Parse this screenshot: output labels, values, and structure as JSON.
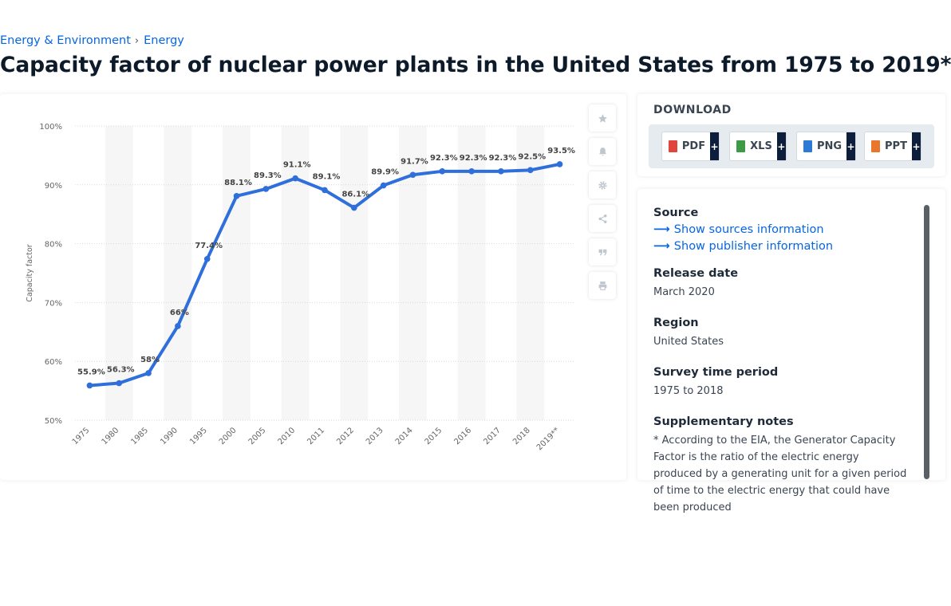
{
  "breadcrumb": {
    "item1": "Energy & Environment",
    "separator": "›",
    "item2": "Energy"
  },
  "page_title": "Capacity factor of nuclear power plants in the United States from 1975 to 2019*",
  "chart_data": {
    "type": "line",
    "title": "",
    "xlabel": "",
    "ylabel": "Capacity factor",
    "ylim": [
      50,
      100
    ],
    "yticks": [
      "100%",
      "90%",
      "80%",
      "70%",
      "60%",
      "50%"
    ],
    "grid": true,
    "categories": [
      "1975",
      "1980",
      "1985",
      "1990",
      "1995",
      "2000",
      "2005",
      "2010",
      "2011",
      "2012",
      "2013",
      "2014",
      "2015",
      "2016",
      "2017",
      "2018",
      "2019**"
    ],
    "values": [
      55.9,
      56.3,
      58,
      66,
      77.4,
      88.1,
      89.3,
      91.1,
      89.1,
      86.1,
      89.9,
      91.7,
      92.3,
      92.3,
      92.3,
      92.5,
      93.5
    ],
    "data_labels": [
      "55.9%",
      "56.3%",
      "58%",
      "66%",
      "77.4%",
      "88.1%",
      "89.3%",
      "91.1%",
      "89.1%",
      "86.1%",
      "89.9%",
      "91.7%",
      "92.3%",
      "92.3%",
      "92.3%",
      "92.5%",
      "93.5%"
    ],
    "colors": {
      "line": "#2f6fdb",
      "band": "#f6f6f6",
      "grid": "#d9d9d9"
    }
  },
  "toolbar": {
    "icons": [
      "star-icon",
      "bell-icon",
      "gear-icon",
      "share-icon",
      "quote-icon",
      "print-icon"
    ]
  },
  "download": {
    "title": "DOWNLOAD",
    "buttons": [
      {
        "label": "PDF",
        "plus": "+",
        "color": "#e0463c"
      },
      {
        "label": "XLS",
        "plus": "+",
        "color": "#3d9b45"
      },
      {
        "label": "PNG",
        "plus": "+",
        "color": "#2a7bd6"
      },
      {
        "label": "PPT",
        "plus": "+",
        "color": "#e8762d"
      }
    ]
  },
  "info": {
    "source_label": "Source",
    "show_sources": "Show sources information",
    "show_publisher": "Show publisher information",
    "release_label": "Release date",
    "release_value": "March 2020",
    "region_label": "Region",
    "region_value": "United States",
    "survey_label": "Survey time period",
    "survey_value": "1975 to 2018",
    "notes_label": "Supplementary notes",
    "notes_value": "* According to the EIA, the Generator Capacity Factor is the ratio of the electric energy produced by a generating unit for a given period of time to the electric energy that could have been produced"
  }
}
